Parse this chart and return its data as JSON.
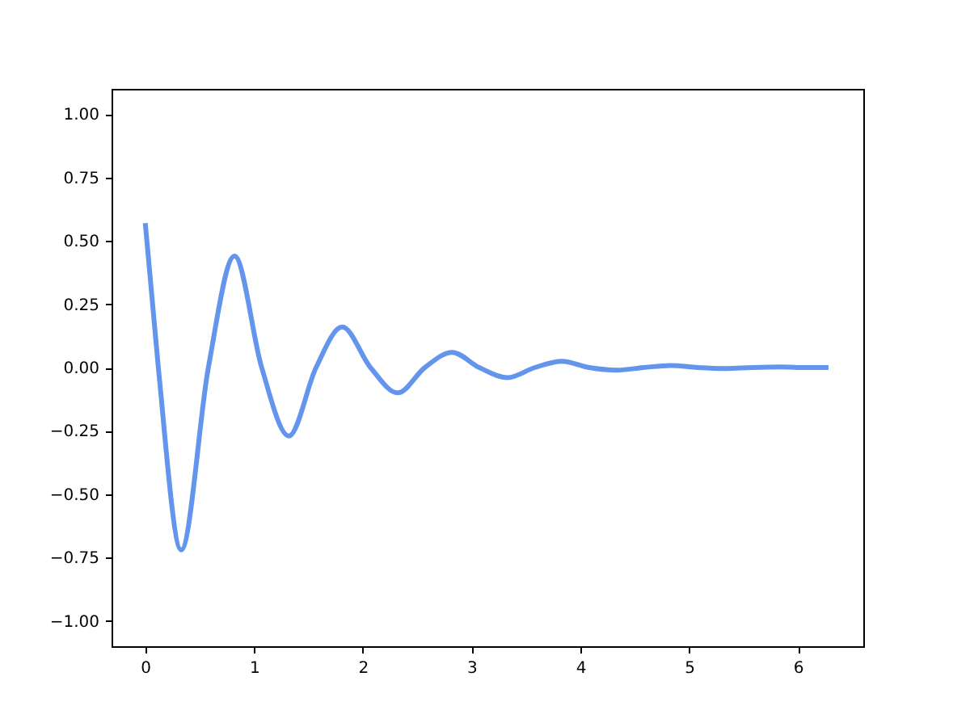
{
  "chart_data": {
    "type": "line",
    "x": [
      0,
      0.12,
      0.33,
      0.58,
      0.82,
      1.07,
      1.32,
      1.57,
      1.81,
      2.07,
      2.32,
      2.57,
      2.82,
      3.07,
      3.33,
      3.58,
      3.83,
      4.08,
      4.34,
      4.58,
      4.83,
      5.08,
      5.33,
      5.58,
      5.84,
      6.08,
      6.28
    ],
    "series": [
      {
        "color": "#6495ed",
        "values": [
          0.57,
          0,
          -0.72,
          0,
          0.44,
          0,
          -0.27,
          0,
          0.16,
          0,
          -0.1,
          0,
          0.06,
          0,
          -0.04,
          0,
          0.025,
          0,
          -0.01,
          0,
          0.008,
          0,
          -0.004,
          0,
          0.002,
          0,
          0
        ]
      }
    ],
    "xlim": [
      -0.31,
      6.6
    ],
    "ylim": [
      -1.1,
      1.1
    ],
    "xticks": [
      0,
      1,
      2,
      3,
      4,
      5,
      6
    ],
    "yticks": [
      {
        "value": -1,
        "label": "−1.00"
      },
      {
        "value": -0.75,
        "label": "−0.75"
      },
      {
        "value": -0.5,
        "label": "−0.50"
      },
      {
        "value": -0.25,
        "label": "−0.25"
      },
      {
        "value": 0,
        "label": "0.00"
      },
      {
        "value": 0.25,
        "label": "0.25"
      },
      {
        "value": 0.5,
        "label": "0.50"
      },
      {
        "value": 0.75,
        "label": "0.75"
      },
      {
        "value": 1,
        "label": "1.00"
      }
    ],
    "grid": false,
    "marker": "none",
    "line_style": "solid"
  }
}
